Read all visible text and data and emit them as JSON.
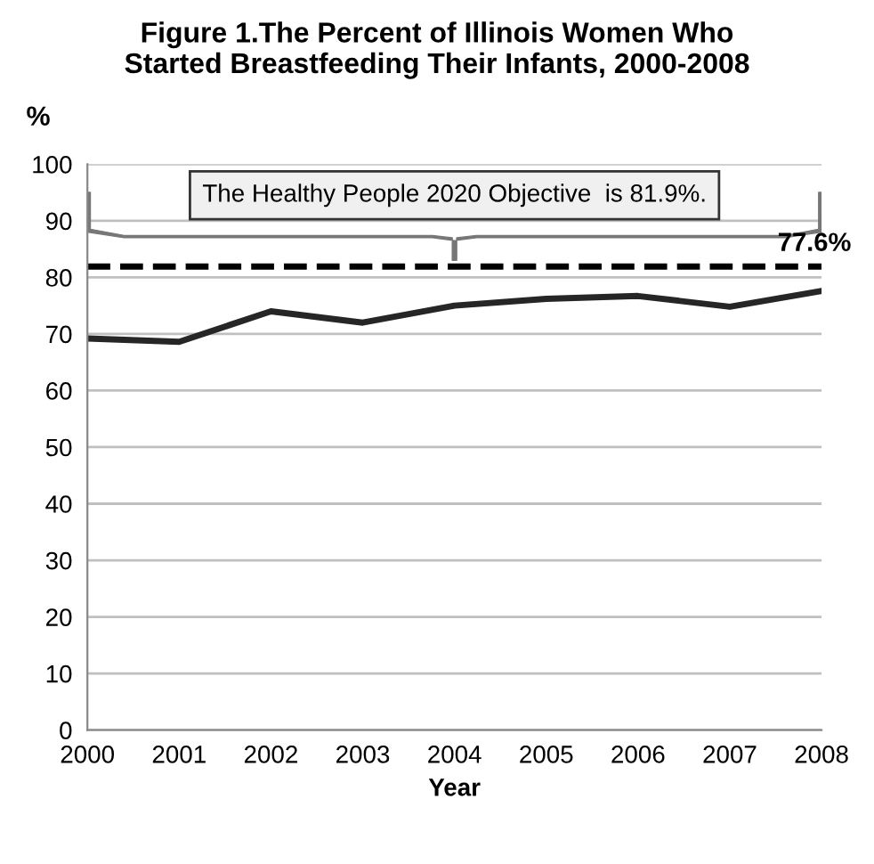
{
  "chart_data": {
    "type": "line",
    "title": "Figure 1.The Percent of Illinois Women Who\nStarted Breastfeeding Their Infants, 2000-2008",
    "ylabel": "%",
    "xlabel": "Year",
    "categories": [
      "2000",
      "2001",
      "2002",
      "2003",
      "2004",
      "2005",
      "2006",
      "2007",
      "2008"
    ],
    "series": [
      {
        "color": "#262626",
        "values": [
          69.2,
          68.6,
          74.0,
          72.0,
          75.0,
          76.2,
          76.7,
          74.8,
          77.6
        ]
      }
    ],
    "ylim": [
      0,
      100
    ],
    "yticks": [
      0,
      10,
      20,
      30,
      40,
      50,
      60,
      70,
      80,
      90,
      100
    ],
    "grid": "y",
    "marker": "none",
    "line_style": "solid",
    "legend": false,
    "ref_lines": [
      {
        "axis": "y",
        "value": 81.9,
        "color": "#000000",
        "line_style": "dashed"
      }
    ],
    "annotations": [
      "The Healthy People 2020 Objective  is 81.9%.",
      {
        "text": "77.6%",
        "x": "2008",
        "y": 77.6
      }
    ]
  }
}
